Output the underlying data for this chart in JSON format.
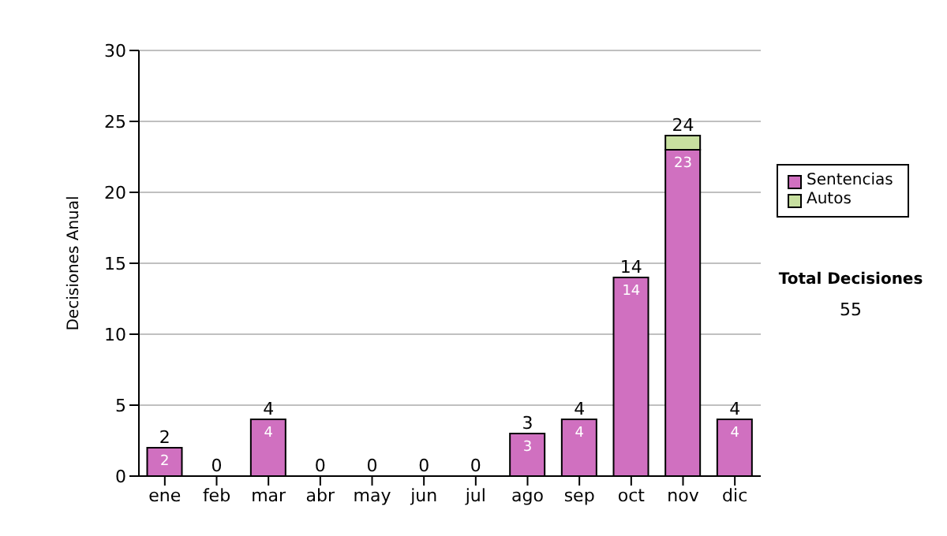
{
  "chart_data": {
    "type": "bar",
    "stacked": true,
    "ylabel": "Decisiones Anual",
    "categories": [
      "ene",
      "feb",
      "mar",
      "abr",
      "may",
      "jun",
      "jul",
      "ago",
      "sep",
      "oct",
      "nov",
      "dic"
    ],
    "series": [
      {
        "name": "Sentencias",
        "color": "#d070c0",
        "values": [
          2,
          0,
          4,
          0,
          0,
          0,
          0,
          3,
          4,
          14,
          23,
          4
        ],
        "value_labels": [
          "2",
          null,
          "4",
          null,
          null,
          null,
          null,
          "3",
          "4",
          "14",
          "23",
          "4"
        ]
      },
      {
        "name": "Autos",
        "color": "#c8e0a0",
        "values": [
          0,
          0,
          0,
          0,
          0,
          0,
          0,
          0,
          0,
          0,
          1,
          0
        ]
      }
    ],
    "totals": [
      "2",
      "0",
      "4",
      "0",
      "0",
      "0",
      "0",
      "3",
      "4",
      "14",
      "24",
      "4"
    ],
    "ylim": [
      0,
      30
    ],
    "yticks": [
      0,
      5,
      10,
      15,
      20,
      25,
      30
    ],
    "grid": "y",
    "legend": "right",
    "annotations": [
      "Total Decisiones",
      "55"
    ]
  }
}
